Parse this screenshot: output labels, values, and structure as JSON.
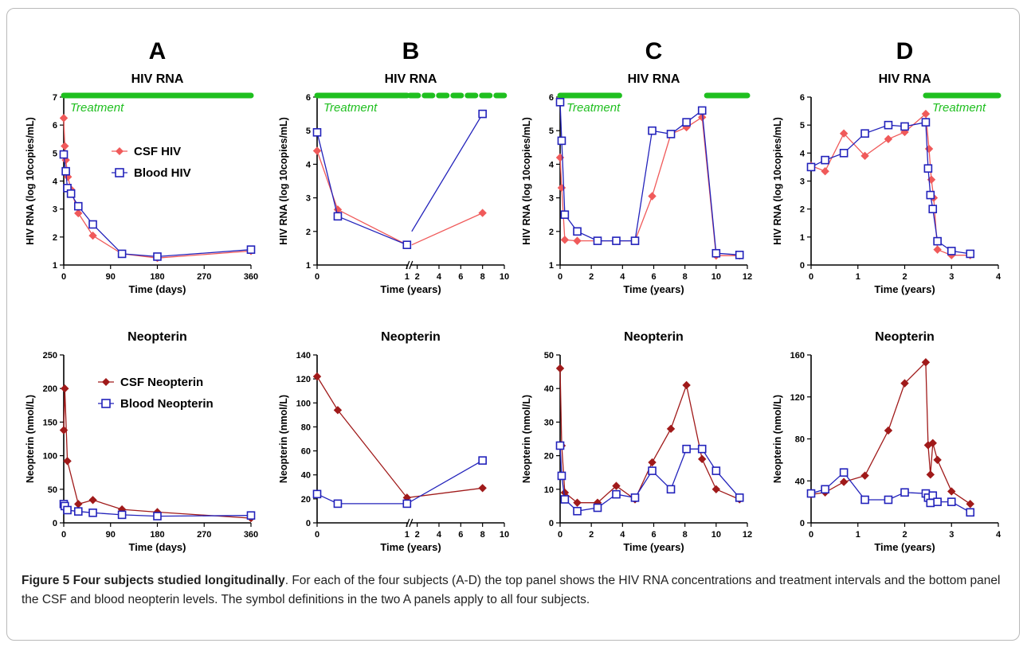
{
  "colors": {
    "csf_hiv": "#f05a5a",
    "blood": "#2222bb",
    "csf_neo": "#a01a1a",
    "treatment": "#1fbf1f"
  },
  "caption": {
    "title": "Figure 5 Four subjects studied longitudinally",
    "text": ". For each of the four subjects (A-D) the top panel shows the HIV RNA concentrations and treatment intervals and the bottom panel the CSF and blood neopterin levels. The symbol definitions in the two A panels apply to all four subjects."
  },
  "columns": [
    "A",
    "B",
    "C",
    "D"
  ],
  "legend": {
    "csf_hiv": "CSF HIV",
    "blood_hiv": "Blood HIV",
    "csf_neopterin": "CSF Neopterin",
    "blood_neopterin": "Blood Neopterin"
  },
  "treatment_label": "Treatment",
  "chart_data": [
    {
      "id": "A-hiv",
      "column": "A",
      "type": "line",
      "title": "HIV RNA",
      "xlabel": "Time (days)",
      "ylabel": "HIV RNA (log 10copies/mL)",
      "xlim": [
        0,
        360
      ],
      "ylim": [
        1,
        7
      ],
      "xticks": [
        0,
        90,
        180,
        270,
        360
      ],
      "yticks": [
        1,
        2,
        3,
        4,
        5,
        6,
        7
      ],
      "treatment": [
        [
          0,
          360
        ]
      ],
      "series": [
        {
          "name": "CSF HIV",
          "x": [
            0,
            2,
            4,
            8,
            14,
            28,
            56,
            112,
            180,
            360
          ],
          "y": [
            6.25,
            5.25,
            4.75,
            4.15,
            3.7,
            2.85,
            2.05,
            1.4,
            1.25,
            1.5
          ]
        },
        {
          "name": "Blood HIV",
          "x": [
            0,
            4,
            7,
            14,
            28,
            56,
            112,
            180,
            360
          ],
          "y": [
            4.95,
            4.35,
            3.75,
            3.55,
            3.1,
            2.45,
            1.4,
            1.3,
            1.55
          ]
        }
      ]
    },
    {
      "id": "B-hiv",
      "column": "B",
      "type": "line",
      "title": "HIV RNA",
      "xlabel": "Time (years)",
      "ylabel": "HIV RNA (log 10copies/mL)",
      "xlim": [
        0,
        10
      ],
      "ylim": [
        1,
        6
      ],
      "xticks": [
        0,
        1,
        2,
        4,
        6,
        8,
        10
      ],
      "yticks": [
        1,
        2,
        3,
        4,
        5,
        6
      ],
      "treatment": [
        [
          0,
          1
        ],
        [
          1,
          10
        ]
      ],
      "series": [
        {
          "name": "CSF HIV",
          "x": [
            0,
            0.23,
            1,
            1.5,
            8
          ],
          "y": [
            4.4,
            2.65,
            1.6,
            1.6,
            2.55
          ]
        },
        {
          "name": "Blood HIV",
          "x": [
            0,
            0.23,
            1,
            1.5,
            8
          ],
          "y": [
            4.95,
            2.45,
            1.6,
            2.0,
            5.5
          ]
        }
      ]
    },
    {
      "id": "C-hiv",
      "column": "C",
      "type": "line",
      "title": "HIV RNA",
      "xlabel": "Time (years)",
      "ylabel": "HIV RNA (log 10copies/mL)",
      "xlim": [
        0,
        12
      ],
      "ylim": [
        1,
        6
      ],
      "xticks": [
        0,
        2,
        4,
        6,
        8,
        10,
        12
      ],
      "yticks": [
        1,
        2,
        3,
        4,
        5,
        6
      ],
      "treatment": [
        [
          0,
          3.8
        ],
        [
          9.2,
          12
        ]
      ],
      "series": [
        {
          "name": "CSF HIV",
          "x": [
            0,
            0.1,
            0.3,
            1.1,
            2.4,
            3.6,
            4.8,
            5.9,
            7.1,
            8.1,
            9.1,
            10.0,
            11.5
          ],
          "y": [
            4.2,
            3.3,
            1.75,
            1.72,
            1.72,
            1.72,
            1.72,
            3.05,
            4.9,
            5.1,
            5.4,
            1.28,
            1.28
          ]
        },
        {
          "name": "Blood HIV",
          "x": [
            0,
            0.1,
            0.3,
            1.1,
            2.4,
            3.6,
            4.8,
            5.9,
            7.1,
            8.1,
            9.1,
            10.0,
            11.5
          ],
          "y": [
            5.85,
            4.7,
            2.5,
            2.0,
            1.72,
            1.72,
            1.72,
            5.0,
            4.9,
            5.25,
            5.6,
            1.35,
            1.3
          ]
        }
      ]
    },
    {
      "id": "D-hiv",
      "column": "D",
      "type": "line",
      "title": "HIV RNA",
      "xlabel": "Time (years)",
      "ylabel": "HIV RNA (log 10copies/mL)",
      "xlim": [
        0,
        4
      ],
      "ylim": [
        0,
        6
      ],
      "xticks": [
        0,
        1,
        2,
        3,
        4
      ],
      "yticks": [
        0,
        1,
        2,
        3,
        4,
        5,
        6
      ],
      "treatment": [
        [
          2.45,
          4
        ]
      ],
      "series": [
        {
          "name": "CSF HIV",
          "x": [
            0,
            0.3,
            0.7,
            1.15,
            1.65,
            2.0,
            2.45,
            2.52,
            2.57,
            2.62,
            2.7,
            3.0,
            3.4
          ],
          "y": [
            3.55,
            3.35,
            4.7,
            3.9,
            4.5,
            4.75,
            5.4,
            4.15,
            3.05,
            2.4,
            0.55,
            0.35,
            0.35
          ]
        },
        {
          "name": "Blood HIV",
          "x": [
            0,
            0.3,
            0.7,
            1.15,
            1.65,
            2.0,
            2.45,
            2.5,
            2.55,
            2.6,
            2.7,
            3.0,
            3.4
          ],
          "y": [
            3.5,
            3.75,
            4.0,
            4.7,
            5.0,
            4.95,
            5.1,
            3.45,
            2.5,
            2.0,
            0.85,
            0.5,
            0.4
          ]
        }
      ]
    },
    {
      "id": "A-neo",
      "column": "A",
      "type": "line",
      "title": "Neopterin",
      "xlabel": "Time (days)",
      "ylabel": "Neopterin (nmol/L)",
      "xlim": [
        0,
        360
      ],
      "ylim": [
        0,
        250
      ],
      "xticks": [
        0,
        90,
        180,
        270,
        360
      ],
      "yticks": [
        0,
        50,
        100,
        150,
        200,
        250
      ],
      "series": [
        {
          "name": "CSF Neopterin",
          "x": [
            0,
            2,
            7,
            28,
            56,
            112,
            180,
            360
          ],
          "y": [
            138,
            200,
            92,
            28,
            34,
            20,
            16,
            7
          ]
        },
        {
          "name": "Blood Neopterin",
          "x": [
            0,
            2,
            7,
            28,
            56,
            112,
            180,
            360
          ],
          "y": [
            28,
            25,
            19,
            17,
            15,
            12,
            10,
            11
          ]
        }
      ]
    },
    {
      "id": "B-neo",
      "column": "B",
      "type": "line",
      "title": "Neopterin",
      "xlabel": "Time (years)",
      "ylabel": "Neopterin (nmol/L)",
      "xlim": [
        0,
        10
      ],
      "ylim": [
        0,
        140
      ],
      "xticks": [
        0,
        1,
        2,
        4,
        6,
        8,
        10
      ],
      "yticks": [
        0,
        20,
        40,
        60,
        80,
        100,
        120,
        140
      ],
      "series": [
        {
          "name": "CSF Neopterin",
          "x": [
            0,
            0.23,
            1,
            8
          ],
          "y": [
            122,
            94,
            21,
            29
          ]
        },
        {
          "name": "Blood Neopterin",
          "x": [
            0,
            0.23,
            1,
            8
          ],
          "y": [
            24,
            16,
            16,
            52
          ]
        }
      ]
    },
    {
      "id": "C-neo",
      "column": "C",
      "type": "line",
      "title": "Neopterin",
      "xlabel": "Time (years)",
      "ylabel": "Neopterin (nmol/L)",
      "xlim": [
        0,
        12
      ],
      "ylim": [
        0,
        50
      ],
      "xticks": [
        0,
        2,
        4,
        6,
        8,
        10,
        12
      ],
      "yticks": [
        0,
        10,
        20,
        30,
        40,
        50
      ],
      "series": [
        {
          "name": "CSF Neopterin",
          "x": [
            0,
            0.1,
            0.3,
            1.1,
            2.4,
            3.6,
            4.8,
            5.9,
            7.1,
            8.1,
            9.1,
            10.0,
            11.5
          ],
          "y": [
            46,
            23,
            9,
            6,
            6,
            11,
            7,
            18,
            28,
            41,
            19,
            10,
            7
          ]
        },
        {
          "name": "Blood Neopterin",
          "x": [
            0,
            0.1,
            0.3,
            1.1,
            2.4,
            3.6,
            4.8,
            5.9,
            7.1,
            8.1,
            9.1,
            10.0,
            11.5
          ],
          "y": [
            23,
            14,
            7,
            3.5,
            4.5,
            8.5,
            7.5,
            15.5,
            10,
            22,
            22,
            15.5,
            7.5
          ]
        }
      ]
    },
    {
      "id": "D-neo",
      "column": "D",
      "type": "line",
      "title": "Neopterin",
      "xlabel": "Time (years)",
      "ylabel": "Neopterin (nmol/L)",
      "xlim": [
        0,
        4
      ],
      "ylim": [
        0,
        160
      ],
      "xticks": [
        0,
        1,
        2,
        3,
        4
      ],
      "yticks": [
        0,
        40,
        80,
        120,
        160
      ],
      "series": [
        {
          "name": "CSF Neopterin",
          "x": [
            0,
            0.3,
            0.7,
            1.15,
            1.65,
            2.0,
            2.45,
            2.5,
            2.55,
            2.6,
            2.7,
            3.0,
            3.4
          ],
          "y": [
            27,
            29,
            39,
            45,
            88,
            133,
            153,
            74,
            46,
            76,
            60,
            30,
            18
          ]
        },
        {
          "name": "Blood Neopterin",
          "x": [
            0,
            0.3,
            0.7,
            1.15,
            1.65,
            2.0,
            2.45,
            2.5,
            2.55,
            2.6,
            2.7,
            3.0,
            3.4
          ],
          "y": [
            28,
            32,
            48,
            22,
            22,
            29,
            28,
            24,
            19,
            26,
            20,
            20,
            10
          ]
        }
      ]
    }
  ]
}
